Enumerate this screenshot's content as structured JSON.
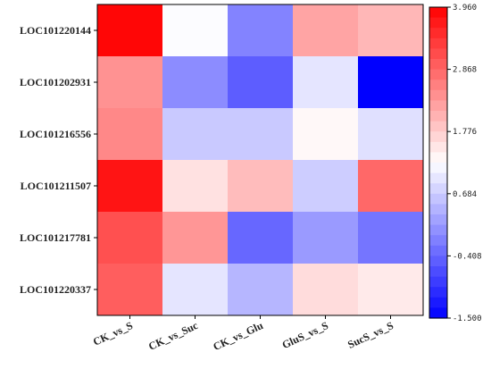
{
  "chart_data": {
    "type": "heatmap",
    "rows": [
      "LOC101220144",
      "LOC101202931",
      "LOC101216556",
      "LOC101211507",
      "LOC101217781",
      "LOC101220337"
    ],
    "columns": [
      "CK_vs_S",
      "CK_vs_Suc",
      "CK_vs_Glu",
      "GluS_vs_S",
      "SucS_vs_S"
    ],
    "values": [
      [
        3.9,
        1.2,
        -0.1,
        2.2,
        2.0
      ],
      [
        2.4,
        0.0,
        -0.5,
        0.95,
        -1.5
      ],
      [
        2.5,
        0.65,
        0.65,
        1.3,
        0.9
      ],
      [
        3.75,
        1.55,
        1.95,
        0.7,
        2.85
      ],
      [
        3.1,
        2.35,
        -0.4,
        0.15,
        -0.25
      ],
      [
        2.95,
        0.95,
        0.45,
        1.6,
        1.45
      ]
    ],
    "colorbar": {
      "min": -1.5,
      "max": 3.96,
      "ticks": [
        "3.960",
        "2.868",
        "1.776",
        "0.684",
        "-0.408",
        "-1.500"
      ],
      "colors": {
        "low": "#0000ff",
        "mid": "#ffffff",
        "high": "#ff0000"
      }
    }
  }
}
